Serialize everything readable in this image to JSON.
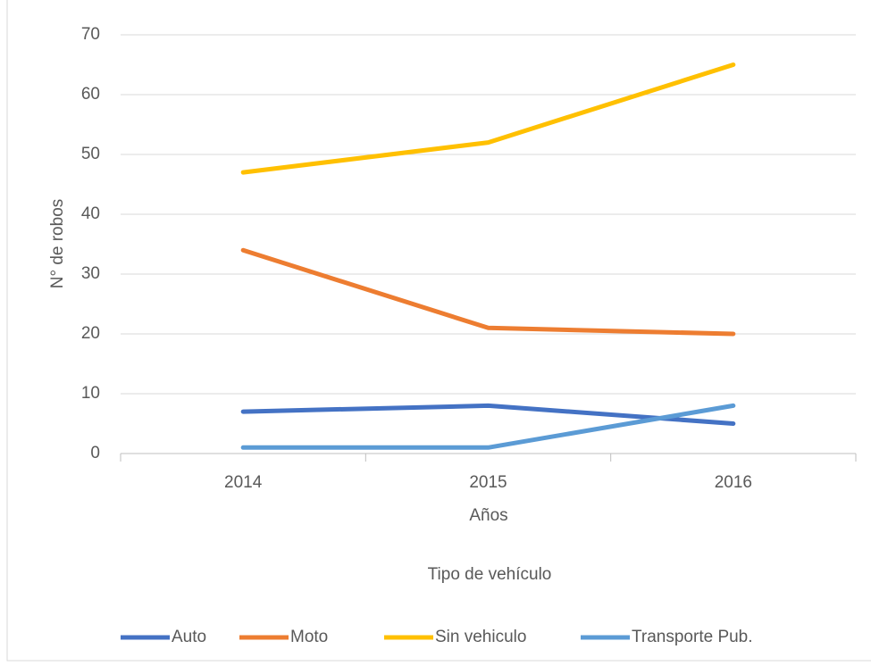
{
  "chart_data": {
    "type": "line",
    "y_label": "N° de robos",
    "x_label": "Años",
    "legend_title": "Tipo de vehículo",
    "categories": [
      "2014",
      "2015",
      "2016"
    ],
    "series": [
      {
        "name": "Auto",
        "color": "#4472c4",
        "values": [
          7,
          8,
          5
        ]
      },
      {
        "name": "Moto",
        "color": "#ed7d31",
        "values": [
          34,
          21,
          20
        ]
      },
      {
        "name": "Sin vehiculo",
        "color": "#ffc000",
        "values": [
          47,
          52,
          65
        ]
      },
      {
        "name": "Transporte Pub.",
        "color": "#5b9bd5",
        "values": [
          1,
          1,
          8
        ]
      }
    ],
    "ylim": [
      0,
      70
    ],
    "yticks": [
      0,
      10,
      20,
      30,
      40,
      50,
      60,
      70
    ],
    "grid": true,
    "legend": "bottom"
  }
}
